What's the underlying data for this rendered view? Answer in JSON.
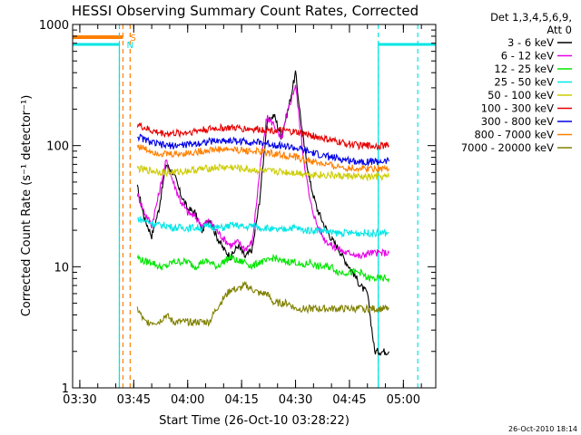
{
  "chart_data": {
    "type": "line",
    "title": "HESSI Observing Summary Count Rates, Corrected",
    "xlabel": "Start Time (26-Oct-10 03:28:22)",
    "ylabel": "Corrected Count Rate (s⁻¹ detector⁻¹)",
    "x_unit": "minutes",
    "xlim": [
      "03:28",
      "05:09"
    ],
    "xticks": [
      "03:30",
      "03:45",
      "04:00",
      "04:15",
      "04:30",
      "04:45",
      "05:00"
    ],
    "ylim": [
      1,
      1000
    ],
    "yscale": "log",
    "yticks": [
      1,
      10,
      100,
      1000
    ],
    "ytick_labels": [
      "1",
      "10",
      "100",
      "1000"
    ],
    "legend_title": "Det 1,3,4,5,6,9,",
    "legend_subtitle": "Att 0",
    "legend_position": "right",
    "footer": "26-Oct-2010 18:14",
    "flags": {
      "saa_label": "S",
      "night_label": "N",
      "saa_color": "#ff8000",
      "night_color": "#00e6e6",
      "saa_intervals": [
        [
          "03:28",
          "03:42"
        ]
      ],
      "night_intervals": [
        [
          "03:28",
          "03:41"
        ],
        [
          "04:53",
          "05:09"
        ]
      ],
      "dashed_markers": [
        {
          "time": "03:42",
          "color": "#ff8000"
        },
        {
          "time": "03:44",
          "color": "#ff8000"
        },
        {
          "time": "03:41",
          "color": "#00e6e6"
        },
        {
          "time": "04:53",
          "color": "#00e6e6"
        },
        {
          "time": "05:04",
          "color": "#00e6e6"
        }
      ]
    },
    "x": [
      "03:46",
      "03:48",
      "03:50",
      "03:52",
      "03:54",
      "03:56",
      "03:58",
      "04:00",
      "04:02",
      "04:04",
      "04:06",
      "04:08",
      "04:10",
      "04:12",
      "04:14",
      "04:16",
      "04:18",
      "04:20",
      "04:22",
      "04:24",
      "04:26",
      "04:28",
      "04:30",
      "04:32",
      "04:34",
      "04:36",
      "04:38",
      "04:40",
      "04:42",
      "04:44",
      "04:46",
      "04:48",
      "04:50",
      "04:52",
      "04:54",
      "04:56"
    ],
    "series": [
      {
        "name": "3 - 6 keV",
        "color": "#000000",
        "values": [
          45,
          25,
          18,
          30,
          70,
          60,
          40,
          30,
          28,
          20,
          25,
          18,
          14,
          12,
          15,
          12,
          14,
          35,
          150,
          180,
          120,
          200,
          400,
          120,
          50,
          30,
          22,
          17,
          14,
          11,
          9,
          7,
          6,
          2,
          2,
          2
        ]
      },
      {
        "name": "6 - 12 keV",
        "color": "#e600e6",
        "values": [
          40,
          28,
          22,
          40,
          75,
          50,
          35,
          28,
          26,
          22,
          24,
          20,
          17,
          15,
          16,
          14,
          16,
          60,
          170,
          150,
          110,
          200,
          320,
          90,
          35,
          22,
          17,
          15,
          14,
          13,
          13,
          12,
          13,
          13,
          13,
          13
        ]
      },
      {
        "name": "12 - 25 keV",
        "color": "#00e600",
        "values": [
          12,
          11,
          11,
          10,
          10,
          11,
          11,
          11,
          10,
          11,
          11,
          10,
          11,
          12,
          11,
          11,
          10,
          11,
          11,
          12,
          11,
          11,
          11,
          10,
          11,
          10,
          10,
          10,
          9,
          9,
          9,
          9,
          8,
          8,
          8,
          8
        ]
      },
      {
        "name": "25 - 50 keV",
        "color": "#00e6e6",
        "values": [
          25,
          24,
          23,
          22,
          22,
          21,
          21,
          21,
          21,
          21,
          22,
          21,
          21,
          22,
          22,
          21,
          22,
          21,
          21,
          20,
          20,
          21,
          21,
          20,
          20,
          20,
          20,
          19,
          19,
          19,
          19,
          19,
          19,
          19,
          19,
          19
        ]
      },
      {
        "name": "50 - 100 keV",
        "color": "#cccc00",
        "values": [
          65,
          63,
          62,
          61,
          60,
          60,
          61,
          62,
          63,
          64,
          65,
          66,
          66,
          66,
          65,
          64,
          63,
          62,
          61,
          61,
          61,
          60,
          60,
          59,
          58,
          58,
          57,
          57,
          56,
          56,
          56,
          55,
          55,
          55,
          55,
          55
        ]
      },
      {
        "name": "100 - 300 keV",
        "color": "#e60000",
        "values": [
          150,
          140,
          132,
          128,
          126,
          126,
          127,
          129,
          132,
          135,
          137,
          139,
          140,
          140,
          139,
          138,
          137,
          136,
          135,
          134,
          133,
          131,
          129,
          126,
          122,
          118,
          114,
          110,
          107,
          104,
          102,
          100,
          100,
          100,
          100,
          100
        ]
      },
      {
        "name": "300 - 800 keV",
        "color": "#0000e6",
        "values": [
          120,
          112,
          106,
          102,
          100,
          100,
          101,
          102,
          104,
          106,
          108,
          109,
          110,
          110,
          109,
          108,
          107,
          106,
          104,
          102,
          100,
          98,
          95,
          92,
          88,
          85,
          82,
          80,
          78,
          76,
          75,
          74,
          74,
          74,
          74,
          74
        ]
      },
      {
        "name": "800 - 7000 keV",
        "color": "#ff8000",
        "values": [
          100,
          94,
          90,
          87,
          85,
          85,
          86,
          87,
          88,
          90,
          92,
          93,
          93,
          93,
          92,
          91,
          90,
          89,
          88,
          86,
          84,
          82,
          80,
          77,
          75,
          72,
          70,
          68,
          67,
          66,
          65,
          65,
          65,
          65,
          65,
          65
        ]
      },
      {
        "name": "7000 - 20000 keV",
        "color": "#808000",
        "values": [
          4.5,
          3.5,
          3.5,
          3.5,
          4,
          3.5,
          3.5,
          3.5,
          3.5,
          3.5,
          3.5,
          4.5,
          5.5,
          6.5,
          6.5,
          7,
          6.5,
          6,
          6,
          5,
          5,
          5,
          4.5,
          4.5,
          4.5,
          4.5,
          4.5,
          4.5,
          4.5,
          4.5,
          4.5,
          4.5,
          4.5,
          4.5,
          4.5,
          4.5
        ]
      }
    ]
  }
}
